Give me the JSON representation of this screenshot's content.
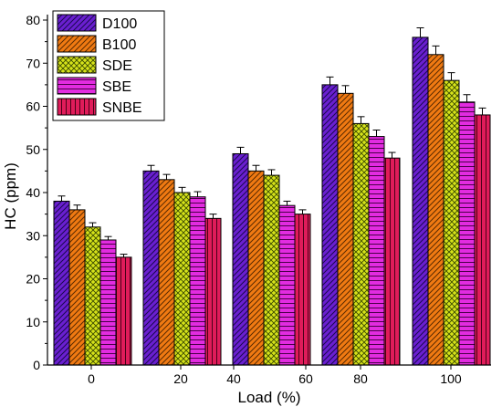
{
  "chart_data": {
    "type": "bar",
    "xlabel": "Load (%)",
    "ylabel": "HC (ppm)",
    "ylim": [
      0,
      80
    ],
    "yticks": [
      0,
      10,
      20,
      30,
      40,
      50,
      60,
      70,
      80
    ],
    "x_tick_labels": [
      "0",
      "20",
      "40",
      "60",
      "80",
      "100"
    ],
    "groups": [
      "0",
      "20",
      "40/60",
      "80",
      "100"
    ],
    "grid": false,
    "legend_position": "top-left",
    "series": [
      {
        "name": "D100",
        "values": [
          38,
          45,
          49,
          65,
          76
        ],
        "errors": [
          1.2,
          1.3,
          1.5,
          1.8,
          2.2
        ],
        "color": "#6a1fd0",
        "pattern": "diag"
      },
      {
        "name": "B100",
        "values": [
          36,
          43,
          45,
          63,
          72
        ],
        "errors": [
          1.1,
          1.2,
          1.3,
          1.8,
          2.0
        ],
        "color": "#f07a12",
        "pattern": "diag"
      },
      {
        "name": "SDE",
        "values": [
          32,
          40,
          44,
          56,
          66
        ],
        "errors": [
          1.0,
          1.2,
          1.3,
          1.6,
          1.8
        ],
        "color": "#d6e21a",
        "pattern": "cross"
      },
      {
        "name": "SBE",
        "values": [
          29,
          39,
          37,
          53,
          61
        ],
        "errors": [
          0.8,
          1.2,
          1.0,
          1.5,
          1.7
        ],
        "color": "#e22ce0",
        "pattern": "horiz"
      },
      {
        "name": "SNBE",
        "values": [
          25,
          34,
          35,
          48,
          58
        ],
        "errors": [
          0.7,
          1.0,
          1.0,
          1.3,
          1.6
        ],
        "color": "#e01c5a",
        "pattern": "vert"
      }
    ]
  }
}
